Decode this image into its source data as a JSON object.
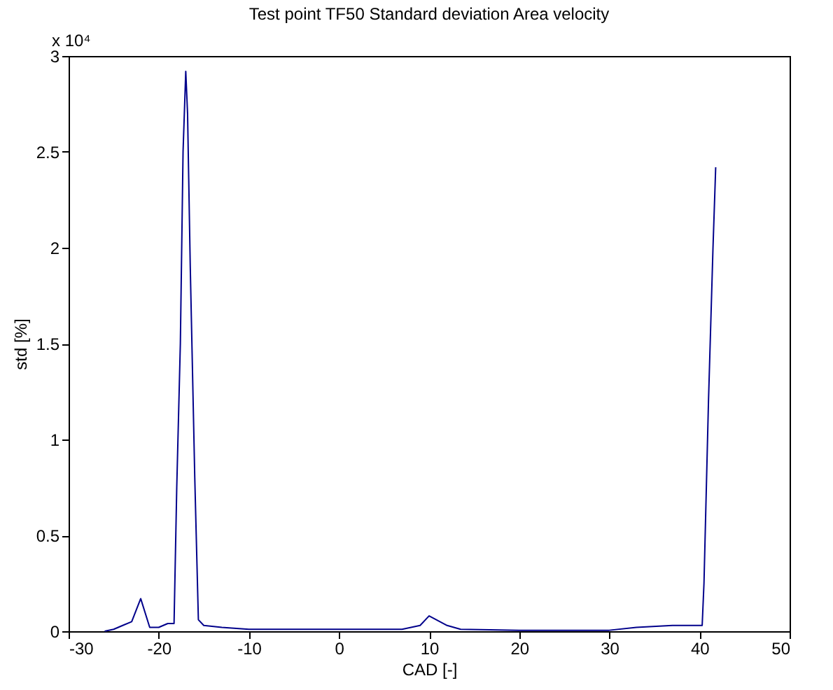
{
  "chart_data": {
    "type": "line",
    "title": "Test point TF50 Standard deviation Area velocity",
    "xlabel": "CAD [-]",
    "ylabel": "std [%]",
    "annotations": [
      "x 10⁴"
    ],
    "xlim": [
      -30,
      50
    ],
    "xticks": [
      -30,
      -20,
      -10,
      0,
      10,
      20,
      30,
      40,
      50
    ],
    "ylim": [
      0,
      3
    ],
    "yticks": [
      0,
      0.5,
      1,
      1.5,
      2,
      2.5,
      3
    ],
    "grid": false,
    "marker": "none",
    "line_style": "solid",
    "series": [
      {
        "color": "#00008b",
        "x": [
          -26,
          -25,
          -24,
          -23,
          -22,
          -21,
          -20,
          -19,
          -18.3,
          -18,
          -17.6,
          -17.3,
          -17,
          -16.8,
          -16.5,
          -16,
          -15.6,
          -15,
          -13,
          -10,
          0,
          7,
          9,
          10,
          12,
          13.5,
          20,
          30,
          33,
          37,
          40,
          40.3,
          40.5,
          41,
          41.5,
          41.8
        ],
        "values": [
          0,
          0.01,
          0.03,
          0.05,
          0.17,
          0.02,
          0.02,
          0.04,
          0.04,
          0.75,
          1.5,
          2.5,
          2.92,
          2.7,
          1.9,
          0.8,
          0.06,
          0.03,
          0.02,
          0.01,
          0.01,
          0.01,
          0.03,
          0.08,
          0.03,
          0.01,
          0.005,
          0.005,
          0.02,
          0.03,
          0.03,
          0.03,
          0.25,
          1.2,
          2.0,
          2.42
        ]
      }
    ]
  }
}
